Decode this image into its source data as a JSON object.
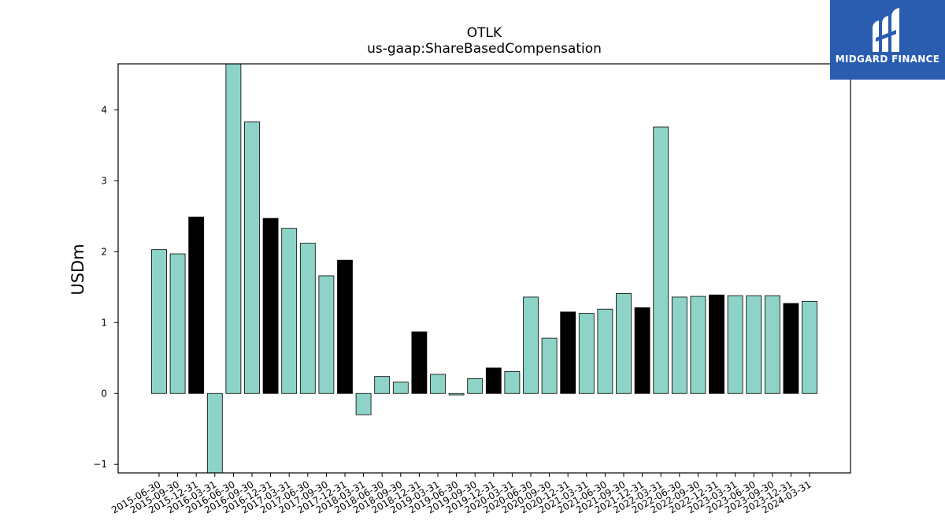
{
  "chart_data": {
    "type": "bar",
    "title": "OTLK",
    "subtitle": "us-gaap:ShareBasedCompensation",
    "ylabel": "USDm",
    "xlabel": "",
    "ylim": [
      -1.12,
      4.65
    ],
    "yticks": [
      -1,
      0,
      1,
      2,
      3,
      4
    ],
    "ytick_labels": [
      "−1",
      "0",
      "1",
      "2",
      "3",
      "4"
    ],
    "grid": false,
    "categories": [
      "2015-06-30",
      "2015-09-30",
      "2015-12-31",
      "2016-03-31",
      "2016-06-30",
      "2016-09-30",
      "2016-12-31",
      "2017-03-31",
      "2017-06-30",
      "2017-09-30",
      "2017-12-31",
      "2018-03-31",
      "2018-06-30",
      "2018-09-30",
      "2018-12-31",
      "2019-03-31",
      "2019-06-30",
      "2019-09-30",
      "2019-12-31",
      "2020-03-31",
      "2020-06-30",
      "2020-09-30",
      "2020-12-31",
      "2021-03-31",
      "2021-06-30",
      "2021-09-30",
      "2021-12-31",
      "2022-03-31",
      "2022-06-30",
      "2022-09-30",
      "2022-12-31",
      "2023-03-31",
      "2023-06-30",
      "2023-09-30",
      "2023-12-31",
      "2024-03-31"
    ],
    "values": [
      2.03,
      1.97,
      2.49,
      -1.15,
      4.7,
      3.83,
      2.47,
      2.33,
      2.12,
      1.66,
      1.88,
      -0.3,
      0.24,
      0.16,
      0.87,
      0.27,
      -0.02,
      0.21,
      0.36,
      0.31,
      1.36,
      0.78,
      1.15,
      1.13,
      1.19,
      1.41,
      1.21,
      3.76,
      1.36,
      1.37,
      1.39,
      1.38,
      1.38,
      1.38,
      1.27,
      1.3
    ],
    "highlight": [
      false,
      false,
      true,
      false,
      false,
      false,
      true,
      false,
      false,
      false,
      true,
      false,
      false,
      false,
      true,
      false,
      false,
      false,
      true,
      false,
      false,
      false,
      true,
      false,
      false,
      false,
      true,
      false,
      false,
      false,
      true,
      false,
      false,
      false,
      true,
      false
    ],
    "colors": {
      "bar": "#8dd3c7",
      "highlight_bar": "#000000",
      "edge": "#000000"
    }
  },
  "logo": {
    "text": "MIDGARD FINANCE",
    "background": "#2a5db0"
  }
}
